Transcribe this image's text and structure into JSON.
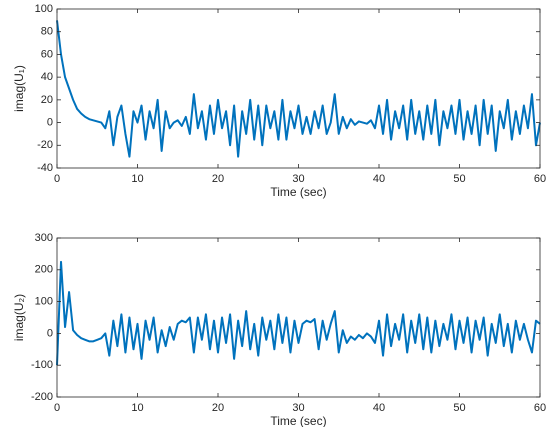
{
  "chart_data": [
    {
      "type": "line",
      "xlabel": "Time (sec)",
      "ylabel": "imag(U₁)",
      "color": "#0072bd",
      "xlim": [
        0,
        60
      ],
      "xticks": [
        0,
        10,
        20,
        30,
        40,
        50,
        60
      ],
      "ylim": [
        -40,
        100
      ],
      "yticks": [
        -40,
        -20,
        0,
        20,
        40,
        60,
        80,
        100
      ],
      "x": [
        0,
        0.5,
        1,
        1.5,
        2,
        2.5,
        3,
        3.5,
        4,
        4.5,
        5,
        5.5,
        6,
        6.5,
        7,
        7.5,
        8,
        8.5,
        9,
        9.5,
        10,
        10.5,
        11,
        11.5,
        12,
        12.5,
        13,
        13.5,
        14,
        14.5,
        15,
        15.5,
        16,
        16.5,
        17,
        17.5,
        18,
        18.5,
        19,
        19.5,
        20,
        20.5,
        21,
        21.5,
        22,
        22.5,
        23,
        23.5,
        24,
        24.5,
        25,
        25.5,
        26,
        26.5,
        27,
        27.5,
        28,
        28.5,
        29,
        29.5,
        30,
        30.5,
        31,
        31.5,
        32,
        32.5,
        33,
        33.5,
        34,
        34.5,
        35,
        35.5,
        36,
        36.5,
        37,
        37.5,
        38,
        38.5,
        39,
        39.5,
        40,
        40.5,
        41,
        41.5,
        42,
        42.5,
        43,
        43.5,
        44,
        44.5,
        45,
        45.5,
        46,
        46.5,
        47,
        47.5,
        48,
        48.5,
        49,
        49.5,
        50,
        50.5,
        51,
        51.5,
        52,
        52.5,
        53,
        53.5,
        54,
        54.5,
        55,
        55.5,
        56,
        56.5,
        57,
        57.5,
        58,
        58.5,
        59,
        59.5,
        60
      ],
      "values": [
        90,
        60,
        40,
        30,
        20,
        12,
        8,
        5,
        3,
        2,
        1,
        0,
        -5,
        10,
        -20,
        5,
        15,
        -10,
        -30,
        10,
        0,
        15,
        -15,
        10,
        -5,
        20,
        -25,
        10,
        -5,
        0,
        2,
        -3,
        5,
        -10,
        25,
        -5,
        10,
        -15,
        15,
        -10,
        20,
        -5,
        10,
        -20,
        15,
        -30,
        10,
        -10,
        20,
        -15,
        15,
        -20,
        15,
        -5,
        10,
        -15,
        20,
        -15,
        10,
        -5,
        15,
        -10,
        5,
        -10,
        10,
        -5,
        15,
        -10,
        0,
        25,
        -10,
        5,
        -5,
        3,
        -2,
        1,
        0,
        -1,
        2,
        -5,
        15,
        -10,
        20,
        -15,
        10,
        -5,
        15,
        -15,
        20,
        -10,
        10,
        -15,
        15,
        -10,
        20,
        -20,
        10,
        -5,
        15,
        -10,
        20,
        -15,
        10,
        -10,
        15,
        -20,
        20,
        -10,
        15,
        -25,
        10,
        -5,
        20,
        -15,
        10,
        -10,
        15,
        -5,
        25,
        -20,
        0
      ]
    },
    {
      "type": "line",
      "xlabel": "Time (sec)",
      "ylabel": "imag(U₂)",
      "color": "#0072bd",
      "xlim": [
        0,
        60
      ],
      "xticks": [
        0,
        10,
        20,
        30,
        40,
        50,
        60
      ],
      "ylim": [
        -200,
        300
      ],
      "yticks": [
        -200,
        -100,
        0,
        100,
        200,
        300
      ],
      "x": [
        0,
        0.5,
        1,
        1.5,
        2,
        2.5,
        3,
        3.5,
        4,
        4.5,
        5,
        5.5,
        6,
        6.5,
        7,
        7.5,
        8,
        8.5,
        9,
        9.5,
        10,
        10.5,
        11,
        11.5,
        12,
        12.5,
        13,
        13.5,
        14,
        14.5,
        15,
        15.5,
        16,
        16.5,
        17,
        17.5,
        18,
        18.5,
        19,
        19.5,
        20,
        20.5,
        21,
        21.5,
        22,
        22.5,
        23,
        23.5,
        24,
        24.5,
        25,
        25.5,
        26,
        26.5,
        27,
        27.5,
        28,
        28.5,
        29,
        29.5,
        30,
        30.5,
        31,
        31.5,
        32,
        32.5,
        33,
        33.5,
        34,
        34.5,
        35,
        35.5,
        36,
        36.5,
        37,
        37.5,
        38,
        38.5,
        39,
        39.5,
        40,
        40.5,
        41,
        41.5,
        42,
        42.5,
        43,
        43.5,
        44,
        44.5,
        45,
        45.5,
        46,
        46.5,
        47,
        47.5,
        48,
        48.5,
        49,
        49.5,
        50,
        50.5,
        51,
        51.5,
        52,
        52.5,
        53,
        53.5,
        54,
        54.5,
        55,
        55.5,
        56,
        56.5,
        57,
        57.5,
        58,
        58.5,
        59,
        59.5,
        60
      ],
      "values": [
        -100,
        225,
        20,
        130,
        10,
        -5,
        -15,
        -20,
        -25,
        -25,
        -20,
        -15,
        0,
        -70,
        40,
        -40,
        60,
        -60,
        50,
        -50,
        30,
        -80,
        40,
        -20,
        50,
        -60,
        10,
        -40,
        20,
        -20,
        30,
        40,
        35,
        50,
        -60,
        50,
        -20,
        60,
        -50,
        40,
        -60,
        50,
        -30,
        60,
        -80,
        40,
        -40,
        70,
        -50,
        30,
        -70,
        50,
        -20,
        40,
        -50,
        60,
        -30,
        50,
        -60,
        40,
        -30,
        30,
        40,
        35,
        45,
        -50,
        40,
        -20,
        30,
        70,
        -60,
        10,
        -30,
        -10,
        -20,
        -5,
        -15,
        0,
        -10,
        -30,
        40,
        -70,
        60,
        -40,
        30,
        -20,
        60,
        -60,
        40,
        -30,
        60,
        -50,
        50,
        -60,
        40,
        -40,
        30,
        -20,
        60,
        -50,
        40,
        -30,
        50,
        -60,
        40,
        -20,
        50,
        -70,
        30,
        -30,
        60,
        -40,
        30,
        -60,
        40,
        -20,
        30,
        -20,
        -60,
        40,
        30
      ]
    }
  ]
}
